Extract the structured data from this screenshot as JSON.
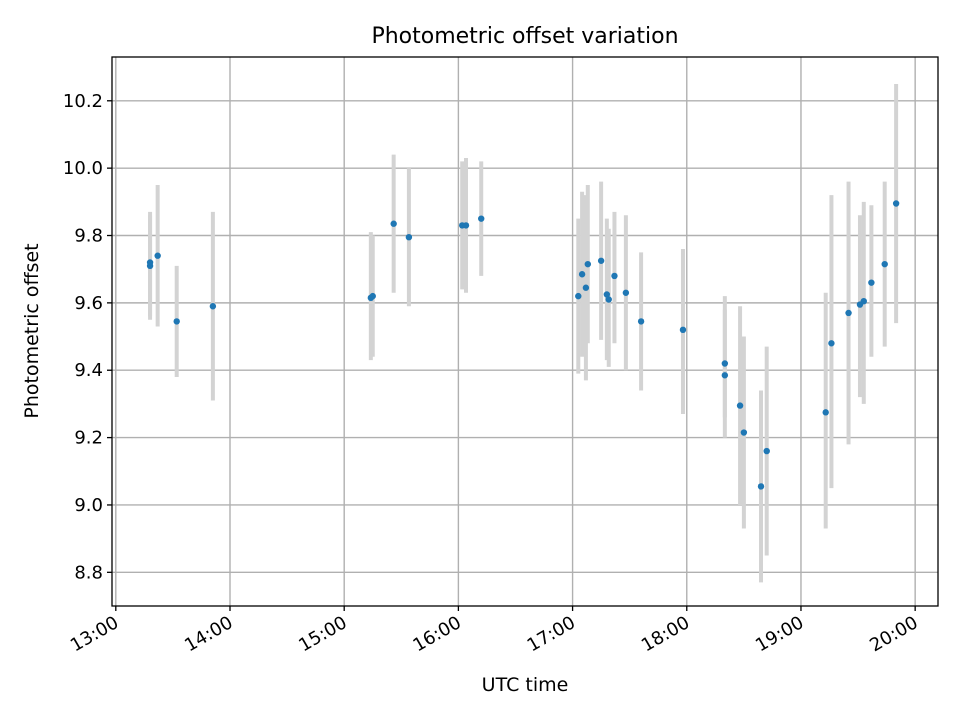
{
  "chart_data": {
    "type": "scatter",
    "title": "Photometric offset variation",
    "xlabel": "UTC time",
    "ylabel": "Photometric offset",
    "xlim": [
      "12:58",
      "20:12"
    ],
    "ylim": [
      8.7,
      10.33
    ],
    "x_ticks": [
      "13:00",
      "14:00",
      "15:00",
      "16:00",
      "17:00",
      "18:00",
      "19:00",
      "20:00"
    ],
    "y_ticks": [
      "8.8",
      "9.0",
      "9.2",
      "9.4",
      "9.6",
      "9.8",
      "10.0",
      "10.2"
    ],
    "grid": true,
    "colors": {
      "point": "#1f77b4",
      "error_bar": "#d3d3d3",
      "grid": "#b0b0b0"
    },
    "points": [
      {
        "x": "13:18",
        "y": 9.71,
        "err_low": 9.55,
        "err_high": 9.87
      },
      {
        "x": "13:18",
        "y": 9.72,
        "err_low": 9.56,
        "err_high": 9.86
      },
      {
        "x": "13:22",
        "y": 9.74,
        "err_low": 9.53,
        "err_high": 9.95
      },
      {
        "x": "13:32",
        "y": 9.545,
        "err_low": 9.38,
        "err_high": 9.71
      },
      {
        "x": "13:51",
        "y": 9.59,
        "err_low": 9.31,
        "err_high": 9.87
      },
      {
        "x": "15:14",
        "y": 9.615,
        "err_low": 9.43,
        "err_high": 9.81
      },
      {
        "x": "15:15",
        "y": 9.62,
        "err_low": 9.44,
        "err_high": 9.8
      },
      {
        "x": "15:26",
        "y": 9.835,
        "err_low": 9.63,
        "err_high": 10.04
      },
      {
        "x": "15:34",
        "y": 9.795,
        "err_low": 9.59,
        "err_high": 10.0
      },
      {
        "x": "16:02",
        "y": 9.83,
        "err_low": 9.64,
        "err_high": 10.02
      },
      {
        "x": "16:04",
        "y": 9.83,
        "err_low": 9.63,
        "err_high": 10.03
      },
      {
        "x": "16:12",
        "y": 9.85,
        "err_low": 9.68,
        "err_high": 10.02
      },
      {
        "x": "17:03",
        "y": 9.62,
        "err_low": 9.39,
        "err_high": 9.85
      },
      {
        "x": "17:05",
        "y": 9.685,
        "err_low": 9.44,
        "err_high": 9.93
      },
      {
        "x": "17:07",
        "y": 9.645,
        "err_low": 9.37,
        "err_high": 9.92
      },
      {
        "x": "17:08",
        "y": 9.715,
        "err_low": 9.48,
        "err_high": 9.95
      },
      {
        "x": "17:15",
        "y": 9.725,
        "err_low": 9.49,
        "err_high": 9.96
      },
      {
        "x": "17:18",
        "y": 9.625,
        "err_low": 9.43,
        "err_high": 9.85
      },
      {
        "x": "17:19",
        "y": 9.61,
        "err_low": 9.41,
        "err_high": 9.82
      },
      {
        "x": "17:22",
        "y": 9.68,
        "err_low": 9.48,
        "err_high": 9.87
      },
      {
        "x": "17:28",
        "y": 9.63,
        "err_low": 9.4,
        "err_high": 9.86
      },
      {
        "x": "17:36",
        "y": 9.545,
        "err_low": 9.34,
        "err_high": 9.75
      },
      {
        "x": "17:58",
        "y": 9.52,
        "err_low": 9.27,
        "err_high": 9.76
      },
      {
        "x": "18:20",
        "y": 9.42,
        "err_low": 9.26,
        "err_high": 9.58
      },
      {
        "x": "18:20",
        "y": 9.385,
        "err_low": 9.2,
        "err_high": 9.62
      },
      {
        "x": "18:28",
        "y": 9.295,
        "err_low": 9.0,
        "err_high": 9.59
      },
      {
        "x": "18:30",
        "y": 9.215,
        "err_low": 8.93,
        "err_high": 9.5
      },
      {
        "x": "18:39",
        "y": 9.055,
        "err_low": 8.77,
        "err_high": 9.34
      },
      {
        "x": "18:42",
        "y": 9.16,
        "err_low": 8.85,
        "err_high": 9.47
      },
      {
        "x": "19:13",
        "y": 9.275,
        "err_low": 8.93,
        "err_high": 9.63
      },
      {
        "x": "19:16",
        "y": 9.48,
        "err_low": 9.05,
        "err_high": 9.92
      },
      {
        "x": "19:25",
        "y": 9.57,
        "err_low": 9.18,
        "err_high": 9.96
      },
      {
        "x": "19:31",
        "y": 9.595,
        "err_low": 9.32,
        "err_high": 9.86
      },
      {
        "x": "19:33",
        "y": 9.605,
        "err_low": 9.3,
        "err_high": 9.9
      },
      {
        "x": "19:37",
        "y": 9.66,
        "err_low": 9.44,
        "err_high": 9.89
      },
      {
        "x": "19:44",
        "y": 9.715,
        "err_low": 9.47,
        "err_high": 9.96
      },
      {
        "x": "19:50",
        "y": 9.895,
        "err_low": 9.54,
        "err_high": 10.25
      }
    ]
  }
}
